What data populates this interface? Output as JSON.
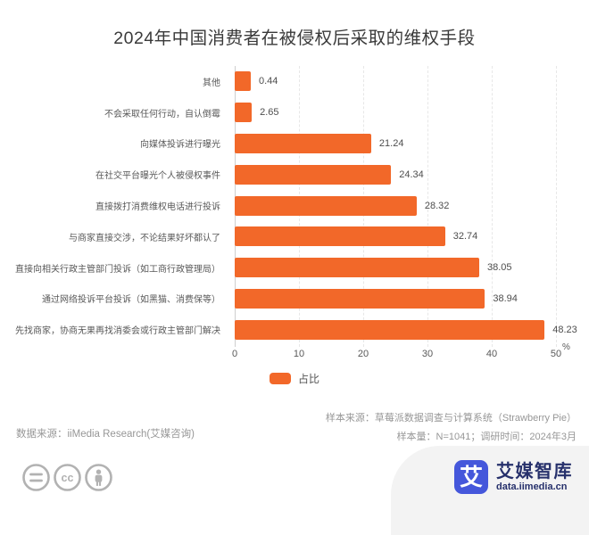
{
  "title": "2024年中国消费者在被侵权后采取的维权手段",
  "chart_data": {
    "type": "bar",
    "orientation": "horizontal",
    "title": "2024年中国消费者在被侵权后采取的维权手段",
    "categories": [
      "其他",
      "不会采取任何行动，自认倒霉",
      "向媒体投诉进行曝光",
      "在社交平台曝光个人被侵权事件",
      "直接拨打消费维权电话进行投诉",
      "与商家直接交涉，不论结果好坏都认了",
      "直接向相关行政主管部门投诉（如工商行政管理局）",
      "通过网络投诉平台投诉（如黑猫、消费保等）",
      "先找商家，协商无果再找消委会或行政主管部门解决"
    ],
    "values": [
      0.44,
      2.65,
      21.24,
      24.34,
      28.32,
      32.74,
      38.05,
      38.94,
      48.23
    ],
    "value_labels": [
      "0.44",
      "2.65",
      "21.24",
      "24.34",
      "28.32",
      "32.74",
      "38.05",
      "38.94",
      "48.23"
    ],
    "series_name": "占比",
    "unit": "%",
    "xlim": [
      0,
      50
    ],
    "x_ticks": [
      0,
      10,
      20,
      30,
      40,
      50
    ],
    "grid": "vertical-dashed",
    "legend_position": "bottom",
    "bar_color": "#F26829"
  },
  "legend": {
    "label": "占比",
    "color": "#F26829"
  },
  "footnotes": {
    "sample_source": "样本来源：草莓派数据调查与计算系统（Strawberry Pie）",
    "sample_info": "样本量：N=1041；调研时间：2024年3月",
    "data_source": "数据来源：iiMedia Research(艾媒咨询)"
  },
  "footer": {
    "license_icons": [
      "equals-icon",
      "cc-icon",
      "attribution-person-icon"
    ],
    "brand_glyph": "艾",
    "brand_name": "艾媒智库",
    "brand_url": "data.iimedia.cn",
    "brand_color": "#4557DB",
    "brand_text_color": "#26306B"
  }
}
